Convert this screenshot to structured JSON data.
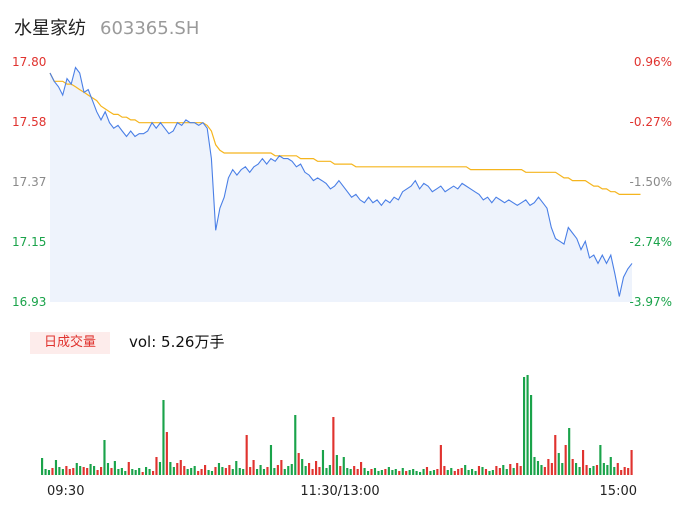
{
  "header": {
    "name": "水星家纺",
    "code": "603365.SH"
  },
  "volume": {
    "tab_label": "日成交量",
    "summary": "vol: 5.26万手"
  },
  "colors": {
    "price": "#4a7fe6",
    "avg": "#f5b51e",
    "up": "#e0332f",
    "down": "#1aa34a",
    "fill": "#eef3fc"
  },
  "chart_data": [
    {
      "type": "line",
      "ylim": [
        16.93,
        17.8
      ],
      "y_ticks": [
        "17.80",
        "17.58",
        "17.37",
        "17.15",
        "16.93"
      ],
      "pct_ticks": [
        "0.96%",
        "-0.27%",
        "-1.50%",
        "-2.74%",
        "-3.97%"
      ],
      "series": [
        {
          "values": [
            17.76,
            17.73,
            17.71,
            17.68,
            17.74,
            17.72,
            17.78,
            17.76,
            17.69,
            17.7,
            17.66,
            17.62,
            17.59,
            17.62,
            17.58,
            17.56,
            17.57,
            17.55,
            17.53,
            17.55,
            17.53,
            17.54,
            17.54,
            17.55,
            17.58,
            17.56,
            17.58,
            17.56,
            17.54,
            17.55,
            17.58,
            17.57,
            17.59,
            17.58,
            17.58,
            17.57,
            17.58,
            17.56,
            17.45,
            17.19,
            17.27,
            17.31,
            17.38,
            17.41,
            17.39,
            17.41,
            17.42,
            17.4,
            17.42,
            17.43,
            17.45,
            17.43,
            17.45,
            17.44,
            17.46,
            17.45,
            17.45,
            17.44,
            17.42,
            17.43,
            17.4,
            17.39,
            17.37,
            17.38,
            17.37,
            17.36,
            17.34,
            17.35,
            17.37,
            17.35,
            17.33,
            17.31,
            17.32,
            17.3,
            17.29,
            17.31,
            17.29,
            17.3,
            17.28,
            17.3,
            17.29,
            17.31,
            17.3,
            17.33,
            17.34,
            17.35,
            17.37,
            17.34,
            17.36,
            17.35,
            17.33,
            17.34,
            17.35,
            17.33,
            17.34,
            17.35,
            17.34,
            17.36,
            17.35,
            17.34,
            17.33,
            17.32,
            17.3,
            17.31,
            17.29,
            17.31,
            17.3,
            17.29,
            17.3,
            17.29,
            17.28,
            17.29,
            17.3,
            17.28,
            17.29,
            17.31,
            17.29,
            17.27,
            17.2,
            17.16,
            17.15,
            17.14,
            17.2,
            17.18,
            17.16,
            17.12,
            17.15,
            17.09,
            17.1,
            17.07,
            17.1,
            17.07,
            17.1,
            17.03,
            16.95,
            17.02,
            17.05,
            17.07
          ],
          "color": "#4a7fe6"
        },
        {
          "values": [
            17.76,
            17.73,
            17.73,
            17.73,
            17.72,
            17.72,
            17.71,
            17.7,
            17.69,
            17.68,
            17.67,
            17.66,
            17.64,
            17.63,
            17.62,
            17.61,
            17.61,
            17.6,
            17.6,
            17.59,
            17.59,
            17.58,
            17.58,
            17.58,
            17.58,
            17.58,
            17.58,
            17.58,
            17.58,
            17.58,
            17.58,
            17.58,
            17.58,
            17.58,
            17.58,
            17.58,
            17.58,
            17.57,
            17.55,
            17.5,
            17.48,
            17.47,
            17.47,
            17.47,
            17.47,
            17.47,
            17.47,
            17.47,
            17.47,
            17.47,
            17.47,
            17.47,
            17.47,
            17.46,
            17.46,
            17.46,
            17.46,
            17.46,
            17.46,
            17.45,
            17.45,
            17.45,
            17.45,
            17.44,
            17.44,
            17.44,
            17.44,
            17.43,
            17.43,
            17.43,
            17.43,
            17.43,
            17.42,
            17.42,
            17.42,
            17.42,
            17.42,
            17.42,
            17.42,
            17.42,
            17.42,
            17.42,
            17.42,
            17.42,
            17.42,
            17.42,
            17.42,
            17.42,
            17.42,
            17.42,
            17.42,
            17.42,
            17.42,
            17.42,
            17.42,
            17.42,
            17.42,
            17.42,
            17.42,
            17.41,
            17.41,
            17.41,
            17.41,
            17.41,
            17.41,
            17.41,
            17.41,
            17.41,
            17.41,
            17.41,
            17.41,
            17.41,
            17.4,
            17.4,
            17.4,
            17.4,
            17.4,
            17.4,
            17.4,
            17.4,
            17.39,
            17.38,
            17.38,
            17.37,
            17.37,
            17.37,
            17.37,
            17.36,
            17.35,
            17.35,
            17.34,
            17.34,
            17.33,
            17.33,
            17.32,
            17.32,
            17.32,
            17.32,
            17.32,
            17.32
          ],
          "color": "#f5b51e"
        }
      ]
    },
    {
      "type": "bar",
      "x_ticks": [
        "09:30",
        "11:30/13:00",
        "15:00"
      ],
      "values": [
        17,
        6,
        5,
        7,
        15,
        8,
        6,
        9,
        6,
        7,
        12,
        9,
        8,
        7,
        11,
        9,
        5,
        8,
        35,
        12,
        7,
        14,
        6,
        7,
        4,
        13,
        6,
        5,
        7,
        3,
        8,
        6,
        4,
        18,
        13,
        75,
        43,
        13,
        8,
        12,
        15,
        9,
        6,
        7,
        9,
        4,
        6,
        10,
        5,
        4,
        8,
        12,
        8,
        7,
        10,
        6,
        14,
        7,
        6,
        40,
        8,
        15,
        6,
        10,
        6,
        8,
        30,
        7,
        10,
        15,
        6,
        9,
        11,
        60,
        22,
        16,
        9,
        12,
        6,
        14,
        8,
        25,
        7,
        10,
        58,
        20,
        9,
        18,
        7,
        6,
        9,
        6,
        13,
        7,
        4,
        6,
        7,
        4,
        5,
        6,
        8,
        5,
        6,
        4,
        7,
        4,
        5,
        6,
        4,
        3,
        6,
        8,
        4,
        5,
        6,
        30,
        9,
        5,
        7,
        4,
        6,
        7,
        10,
        5,
        6,
        4,
        9,
        8,
        6,
        4,
        5,
        9,
        7,
        10,
        6,
        11,
        7,
        12,
        9,
        98,
        100,
        80,
        18,
        14,
        10,
        8,
        16,
        12,
        40,
        22,
        12,
        30,
        47,
        16,
        12,
        8,
        25,
        10,
        7,
        9,
        10,
        30,
        12,
        10,
        18,
        8,
        12,
        5,
        8,
        7,
        25
      ],
      "colors": "ddduddduuudduudduudduddddudddudduuddudduuuddduuuddudduudddduuudddudduuddddudduuuudddududdduuuddudddudddududddddudduuudduuuddddududduudduduudddddduuuuddududduudduddddduuuuu"
    }
  ]
}
